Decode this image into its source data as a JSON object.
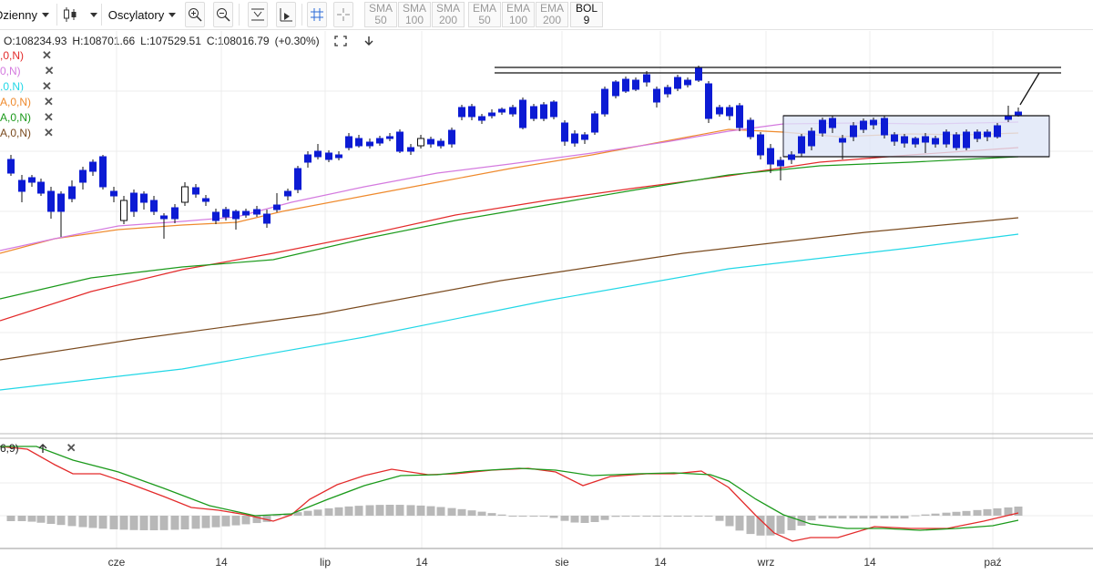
{
  "toolbar": {
    "interval_label": "Dzienny",
    "oscillators_label": "Oscylatory",
    "ma_buttons": [
      {
        "kind": "SMA",
        "period": "50",
        "active": false
      },
      {
        "kind": "SMA",
        "period": "100",
        "active": false
      },
      {
        "kind": "SMA",
        "period": "200",
        "active": false
      },
      {
        "kind": "EMA",
        "period": "50",
        "active": false
      },
      {
        "kind": "EMA",
        "period": "100",
        "active": false
      },
      {
        "kind": "EMA",
        "period": "200",
        "active": false
      },
      {
        "kind": "BOL",
        "period": "9",
        "active": true
      }
    ]
  },
  "ohlc": {
    "open": "O:108234.93",
    "high": "H:108701.66",
    "low": "L:107529.51",
    "close": "C:108016.79",
    "change": "(+0.30%)"
  },
  "legend": [
    {
      "text": ",0,N)",
      "color": "#e32b2b"
    },
    {
      "text": "0,N)",
      "color": "#d47adf"
    },
    {
      "text": ",0,N)",
      "color": "#21d7e6"
    },
    {
      "text": "A,0,N)",
      "color": "#ef8a2d"
    },
    {
      "text": "A,0,N)",
      "color": "#1b9a1b"
    },
    {
      "text": "A,0,N)",
      "color": "#7a4a1e"
    }
  ],
  "macd_legend": {
    "text": "6,9)"
  },
  "colors": {
    "candle_up": "#0c1bd4",
    "macd_line": "#e32b2b",
    "signal_line": "#1b9a1b",
    "histogram": "#b8b8b8",
    "grid": "#ececec",
    "channel_fill": "#dfe6f7",
    "channel_border": "#223"
  },
  "chart_data": {
    "type": "candlestick",
    "x_labels": [
      "cze",
      "14",
      "lip",
      "14",
      "sie",
      "14",
      "wrz",
      "14",
      "paź"
    ],
    "overlays": [
      {
        "color": "#e32b2b",
        "values": []
      },
      {
        "color": "#d47adf",
        "values": []
      },
      {
        "color": "#21d7e6",
        "values": []
      },
      {
        "color": "#ef8a2d",
        "values": []
      },
      {
        "color": "#1b9a1b",
        "values": []
      },
      {
        "color": "#7a4a1e",
        "values": []
      }
    ]
  }
}
